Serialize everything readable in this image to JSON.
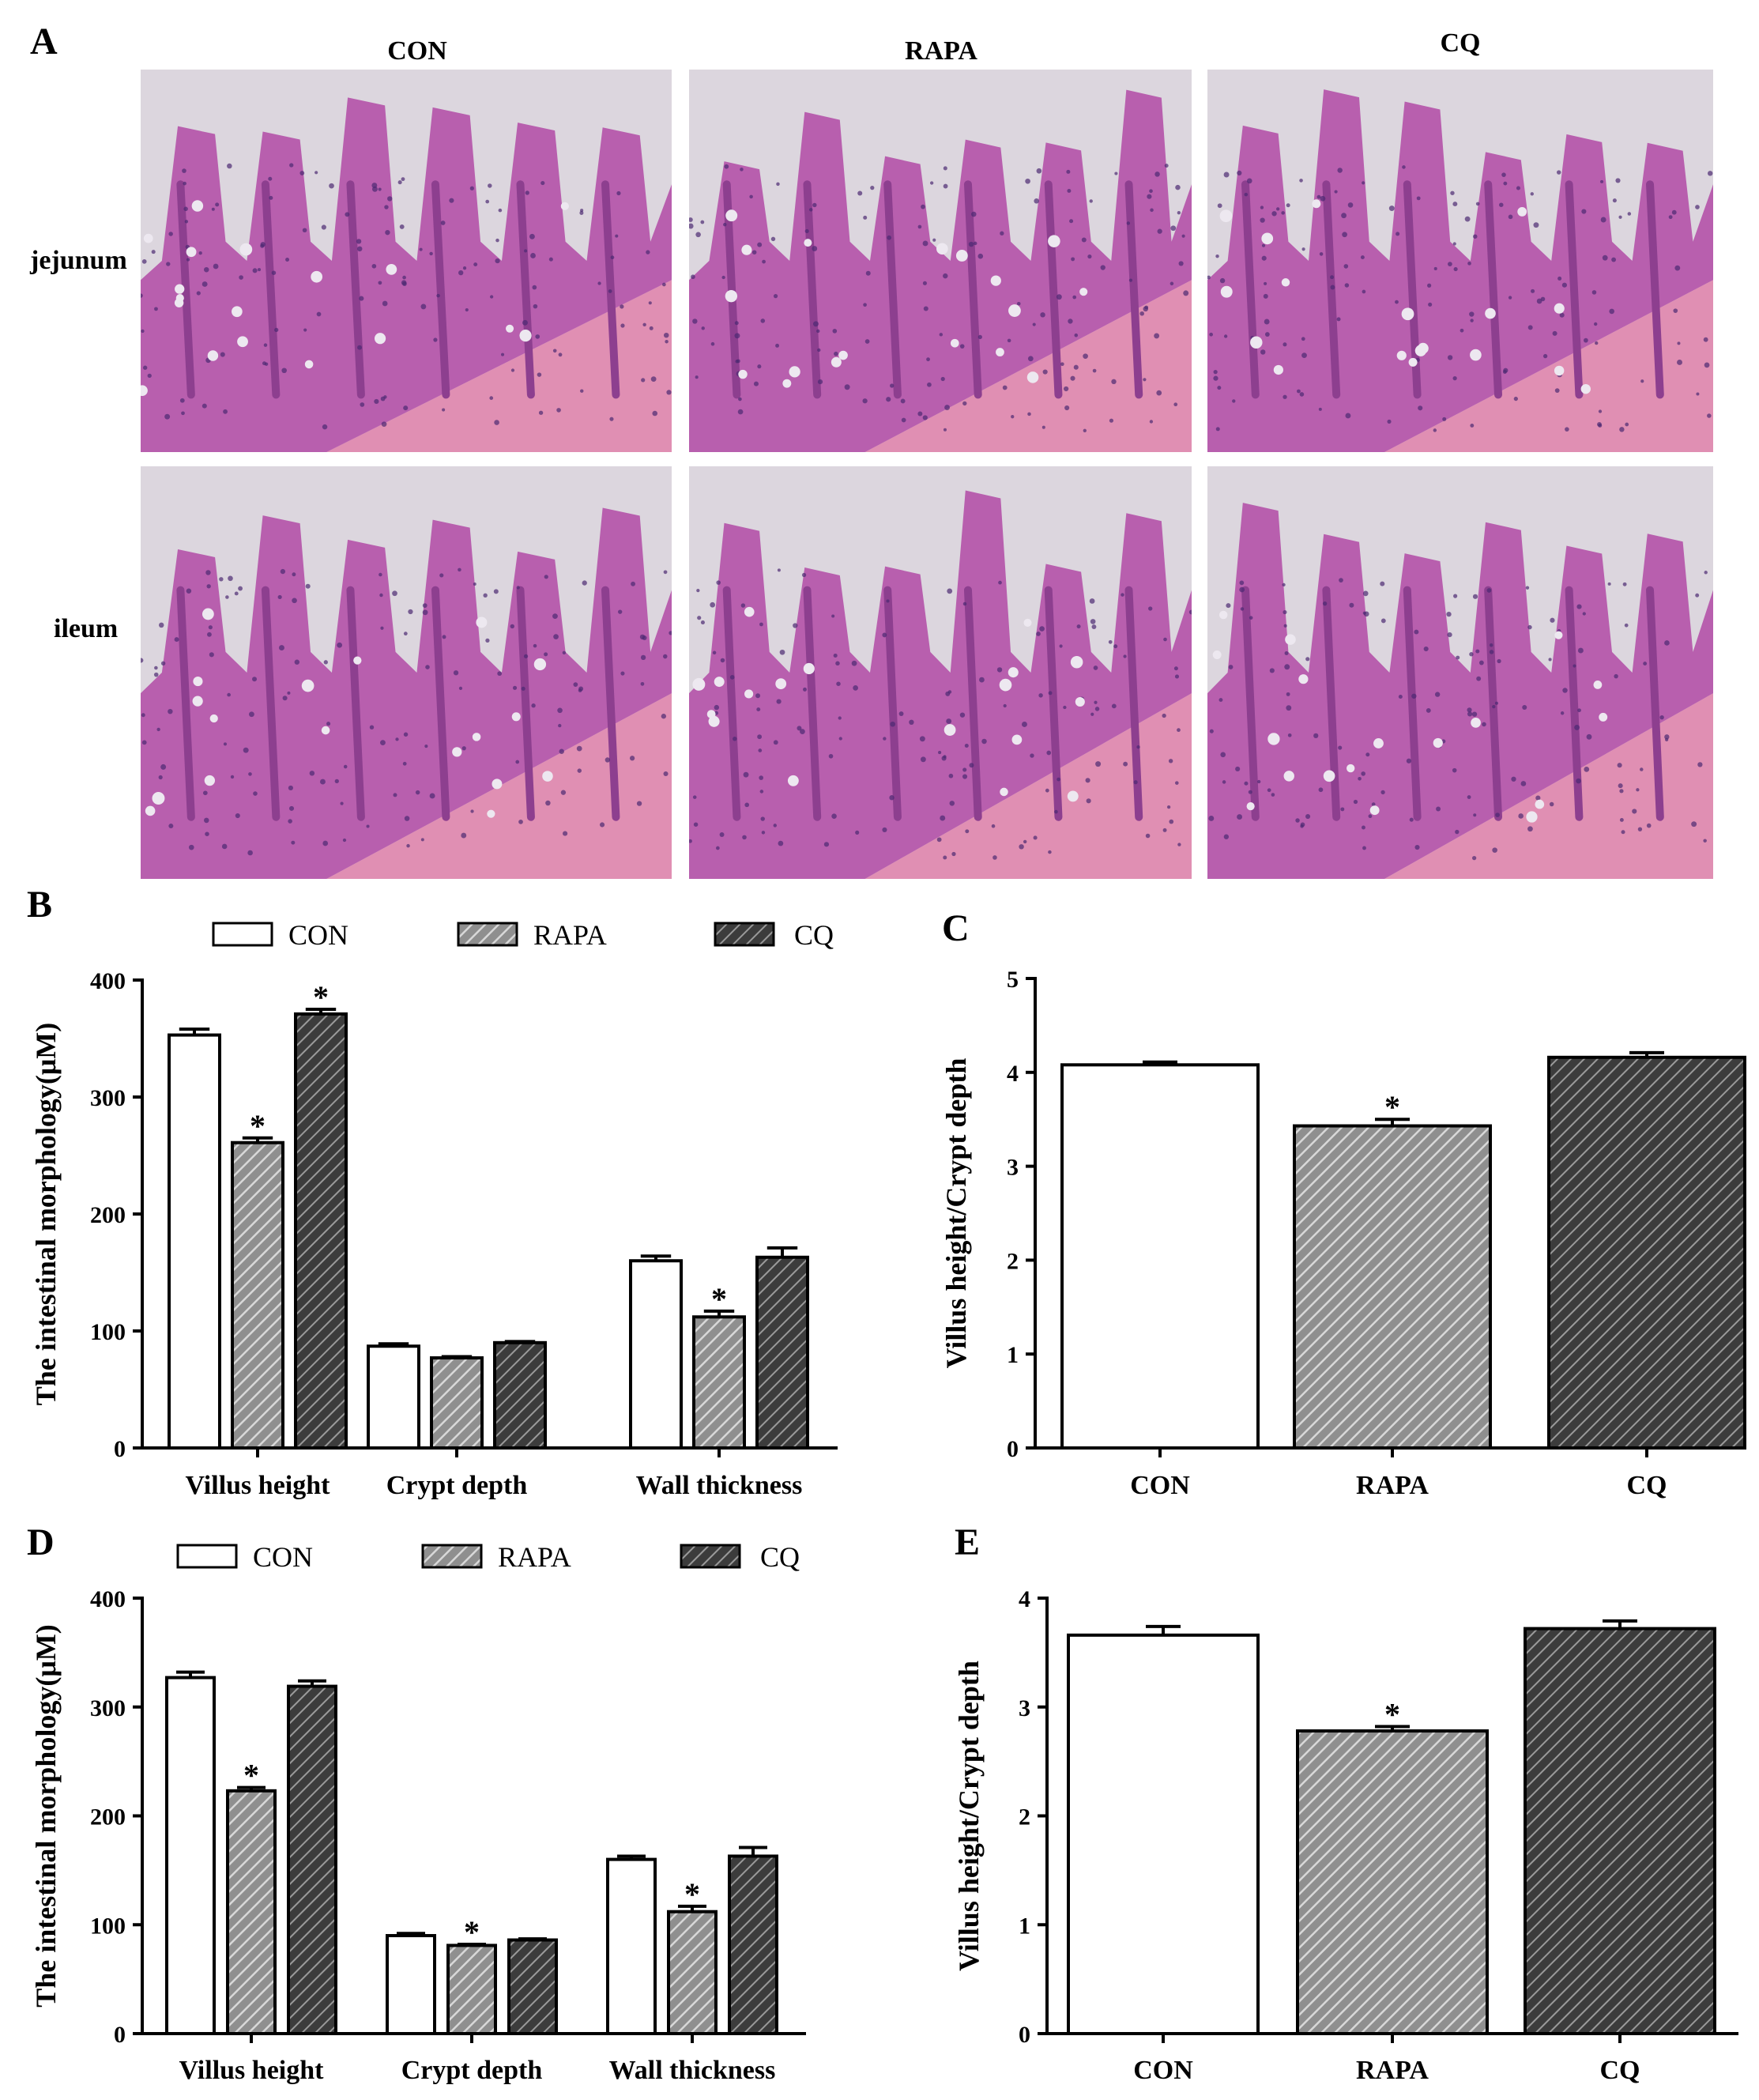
{
  "panel_a": {
    "letter": "A",
    "columns": [
      "CON",
      "RAPA",
      "CQ"
    ],
    "rows": [
      "jejunum",
      "ileum"
    ],
    "colors": {
      "background": "#dcd6de",
      "tissue": "#b85fae",
      "tissue_dark": "#8d3f8f",
      "muscle": "#e08fb3",
      "nuclei": "#4b2a72",
      "goblet": "#ede8f0"
    }
  },
  "chart_data": [
    {
      "id": "B",
      "letter": "B",
      "type": "bar",
      "categories": [
        "Villus height",
        "Crypt depth",
        "Wall thickness"
      ],
      "ylabel": "The intestinal morphology(μM)",
      "ylim": [
        0,
        400
      ],
      "yticks": [
        "0",
        "100",
        "200",
        "300",
        "400"
      ],
      "legend": [
        "CON",
        "RAPA",
        "CQ"
      ],
      "series": [
        {
          "name": "CON",
          "values": [
            353,
            87,
            160
          ],
          "errors": [
            5,
            2,
            4
          ],
          "stars": [
            false,
            false,
            false
          ]
        },
        {
          "name": "RAPA",
          "values": [
            261,
            77,
            112
          ],
          "errors": [
            4,
            1,
            5
          ],
          "stars": [
            true,
            false,
            true
          ]
        },
        {
          "name": "CQ",
          "values": [
            371,
            90,
            163
          ],
          "errors": [
            4,
            1,
            8
          ],
          "stars": [
            true,
            false,
            false
          ]
        }
      ]
    },
    {
      "id": "C",
      "letter": "C",
      "type": "bar",
      "categories": [
        "CON",
        "RAPA",
        "CQ"
      ],
      "ylabel": "Villus height/Crypt depth",
      "ylim": [
        0,
        5
      ],
      "yticks": [
        "0",
        "1",
        "2",
        "3",
        "4",
        "5"
      ],
      "series": [
        {
          "name": "",
          "values": [
            4.08,
            3.43,
            4.16
          ],
          "errors": [
            0.03,
            0.07,
            0.05
          ],
          "stars": [
            false,
            true,
            false
          ]
        }
      ]
    },
    {
      "id": "D",
      "letter": "D",
      "type": "bar",
      "categories": [
        "Villus height",
        "Crypt depth",
        "Wall thickness"
      ],
      "ylabel": "The intestinal morphology(μM)",
      "ylim": [
        0,
        400
      ],
      "yticks": [
        "0",
        "100",
        "200",
        "300",
        "400"
      ],
      "legend": [
        "CON",
        "RAPA",
        "CQ"
      ],
      "series": [
        {
          "name": "CON",
          "values": [
            327,
            90,
            160
          ],
          "errors": [
            5,
            2,
            3
          ],
          "stars": [
            false,
            false,
            false
          ]
        },
        {
          "name": "RAPA",
          "values": [
            223,
            81,
            112
          ],
          "errors": [
            3,
            1,
            5
          ],
          "stars": [
            true,
            true,
            true
          ]
        },
        {
          "name": "CQ",
          "values": [
            319,
            86,
            163
          ],
          "errors": [
            5,
            1,
            8
          ],
          "stars": [
            false,
            false,
            false
          ]
        }
      ]
    },
    {
      "id": "E",
      "letter": "E",
      "type": "bar",
      "categories": [
        "CON",
        "RAPA",
        "CQ"
      ],
      "ylabel": "Villus height/Crypt depth",
      "ylim": [
        0,
        4
      ],
      "yticks": [
        "0",
        "1",
        "2",
        "3",
        "4"
      ],
      "series": [
        {
          "name": "",
          "values": [
            3.66,
            2.78,
            3.72
          ],
          "errors": [
            0.08,
            0.04,
            0.07
          ],
          "stars": [
            false,
            true,
            false
          ]
        }
      ]
    }
  ],
  "styles": {
    "bar_fills": [
      "#ffffff",
      "url(#hatchLight)",
      "url(#hatchDark)"
    ],
    "light_hatch_bg": "#8f8f8f",
    "light_hatch_line": "#d8d8d8",
    "dark_hatch_bg": "#3c3c3c",
    "dark_hatch_line": "#9a9a9a",
    "axis_color": "#000000",
    "star_symbol": "*"
  }
}
